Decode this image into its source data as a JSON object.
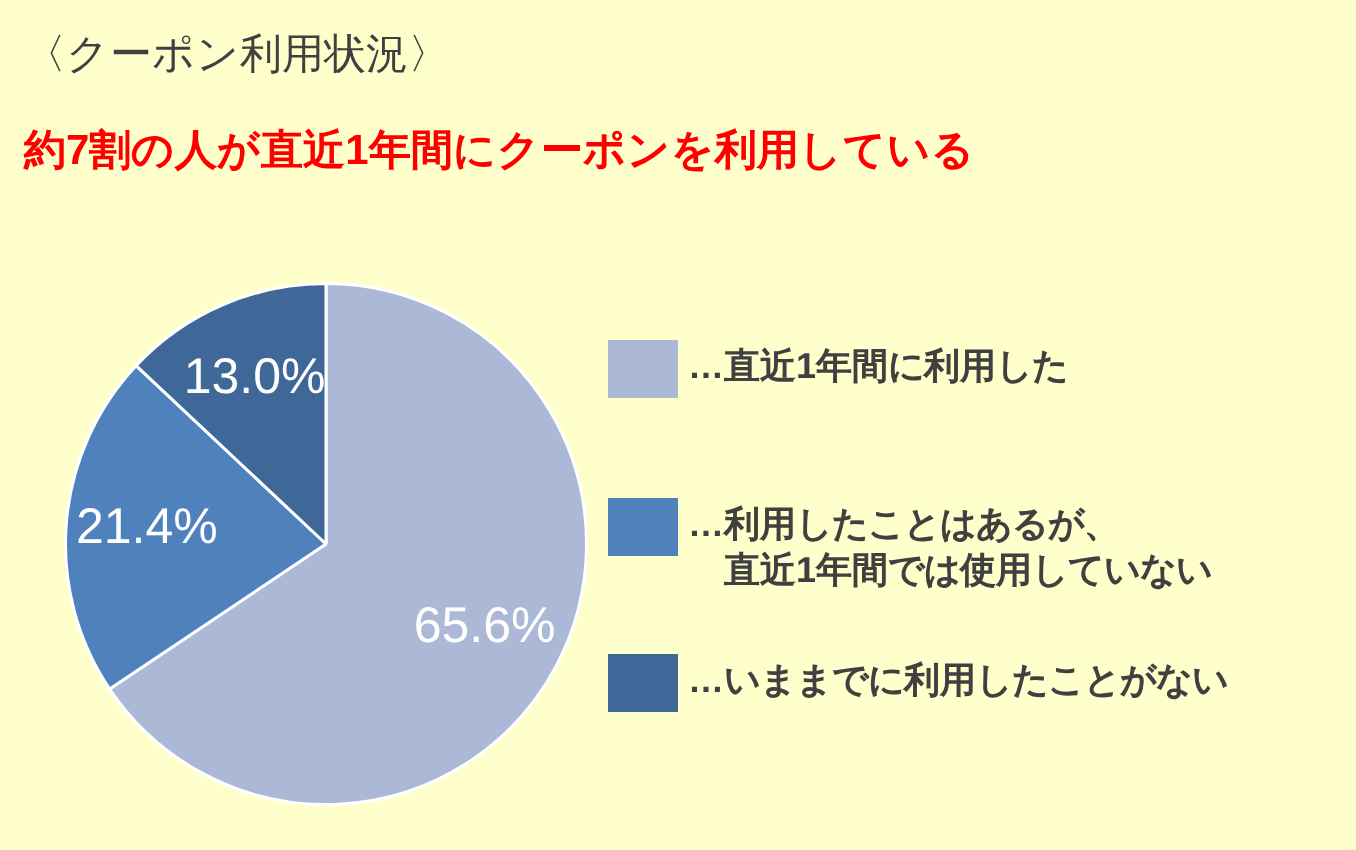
{
  "chart_data": {
    "type": "pie",
    "title": "〈クーポン利用状況〉",
    "subtitle": "約7割の人が直近1年間にクーポンを利用している",
    "categories": [
      "…直近1年間に利用した",
      "…利用したことはあるが、直近1年間では使用していない",
      "…いままでに利用したことがない"
    ],
    "values": [
      65.6,
      21.4,
      13.0
    ],
    "value_labels": [
      "65.6%",
      "21.4%",
      "13.0%"
    ],
    "colors": [
      "#abb9d7",
      "#4f81bd",
      "#3f6899"
    ],
    "legend": "right"
  }
}
